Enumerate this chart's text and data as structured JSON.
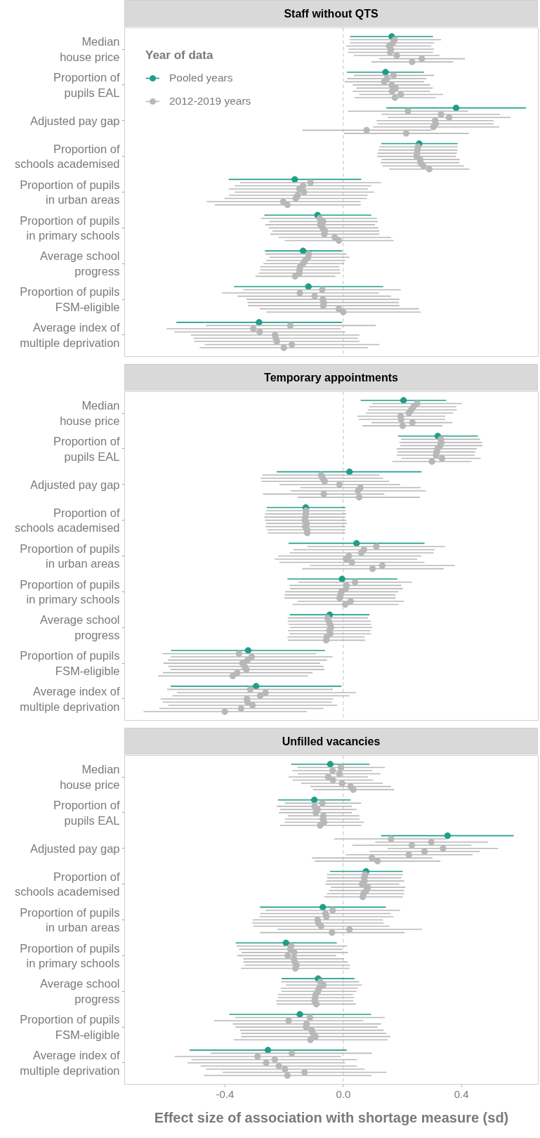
{
  "chart_data": [
    {
      "type": "scatter",
      "orientation": "horizontal",
      "title": "Staff without QTS",
      "categories": [
        "Median\nhouse price",
        "Proportion of\npupils EAL",
        "Adjusted pay gap",
        "Proportion of\nschools academised",
        "Proportion of pupils\nin urban areas",
        "Proportion of pupils\nin primary schools",
        "Average school\nprogress",
        "Proportion of pupils\nFSM-eligible",
        "Average index of\nmultiple deprivation"
      ],
      "xlim": [
        -0.74,
        0.66
      ],
      "tick_labels": "y",
      "legend": "top left",
      "legend_title": "Year of data",
      "marker": "circle",
      "ref_lines": [
        {
          "axis": "x",
          "value": 0,
          "color": "#cccccc",
          "line_style": "dashed"
        }
      ],
      "series": [
        {
          "name": "Pooled years",
          "color": "#1f9e89",
          "values": [
            0.164,
            0.143,
            0.382,
            0.257,
            -0.164,
            -0.087,
            -0.136,
            -0.118,
            -0.285
          ],
          "errors": [
            [
              0.023,
              0.304
            ],
            [
              0.012,
              0.273
            ],
            [
              0.146,
              0.619
            ],
            [
              0.128,
              0.387
            ],
            [
              -0.388,
              0.061
            ],
            [
              -0.267,
              0.095
            ],
            [
              -0.265,
              -0.004
            ],
            [
              -0.37,
              0.135
            ],
            [
              -0.565,
              -0.004
            ]
          ]
        },
        {
          "name": "2012-2019 years",
          "color": "#b8b8b8",
          "values": [
            0.174,
            0.17,
            0.219,
            0.253,
            -0.111,
            -0.08,
            -0.117,
            -0.071,
            -0.179
          ],
          "errors": [
            [
              0.021,
              0.331
            ],
            [
              0.036,
              0.307
            ],
            [
              0.016,
              0.423
            ],
            [
              0.122,
              0.387
            ],
            [
              -0.349,
              0.128
            ],
            [
              -0.279,
              0.114
            ],
            [
              -0.264,
              0.012
            ],
            [
              -0.339,
              0.195
            ],
            [
              -0.465,
              0.11
            ]
          ]
        },
        {
          "color": "#b8b8b8",
          "values": [
            0.168,
            0.148,
            0.331,
            0.251,
            -0.136,
            -0.068,
            -0.119,
            -0.147,
            -0.304
          ],
          "errors": [
            [
              0.023,
              0.307
            ],
            [
              0.014,
              0.282
            ],
            [
              0.13,
              0.53
            ],
            [
              0.119,
              0.387
            ],
            [
              -0.367,
              0.095
            ],
            [
              -0.25,
              0.117
            ],
            [
              -0.25,
              0.021
            ],
            [
              -0.411,
              0.121
            ],
            [
              -0.598,
              -0.008
            ]
          ]
        },
        {
          "color": "#b8b8b8",
          "values": [
            0.155,
            0.139,
            0.358,
            0.25,
            -0.149,
            -0.078,
            -0.129,
            -0.097,
            -0.283
          ],
          "errors": [
            [
              0.01,
              0.298
            ],
            [
              0.005,
              0.273
            ],
            [
              0.15,
              0.566
            ],
            [
              0.116,
              0.384
            ],
            [
              -0.388,
              0.083
            ],
            [
              -0.264,
              0.107
            ],
            [
              -0.261,
              0.007
            ],
            [
              -0.357,
              0.162
            ],
            [
              -0.572,
              0.007
            ]
          ]
        },
        {
          "color": "#b8b8b8",
          "values": [
            0.161,
            0.164,
            0.311,
            0.248,
            -0.133,
            -0.07,
            -0.136,
            -0.069,
            -0.231
          ],
          "errors": [
            [
              0.018,
              0.307
            ],
            [
              0.032,
              0.294
            ],
            [
              0.113,
              0.509
            ],
            [
              0.115,
              0.381
            ],
            [
              -0.367,
              0.104
            ],
            [
              -0.252,
              0.119
            ],
            [
              -0.27,
              0.003
            ],
            [
              -0.328,
              0.19
            ],
            [
              -0.516,
              0.055
            ]
          ]
        },
        {
          "color": "#b8b8b8",
          "values": [
            0.159,
            0.177,
            0.313,
            0.26,
            -0.154,
            -0.062,
            -0.146,
            -0.066,
            -0.228
          ],
          "errors": [
            [
              0.016,
              0.304
            ],
            [
              0.044,
              0.303
            ],
            [
              0.116,
              0.509
            ],
            [
              0.13,
              0.394
            ],
            [
              -0.386,
              0.083
            ],
            [
              -0.24,
              0.122
            ],
            [
              -0.281,
              -0.013
            ],
            [
              -0.324,
              0.188
            ],
            [
              -0.507,
              0.05
            ]
          ]
        },
        {
          "color": "#b8b8b8",
          "values": [
            0.181,
            0.165,
            0.305,
            0.262,
            -0.161,
            -0.064,
            -0.148,
            -0.068,
            -0.225
          ],
          "errors": [
            [
              0.036,
              0.326
            ],
            [
              0.032,
              0.294
            ],
            [
              0.101,
              0.528
            ],
            [
              0.127,
              0.393
            ],
            [
              -0.402,
              0.08
            ],
            [
              -0.247,
              0.122
            ],
            [
              -0.281,
              -0.011
            ],
            [
              -0.322,
              0.19
            ],
            [
              -0.505,
              0.055
            ]
          ]
        },
        {
          "color": "#b8b8b8",
          "values": [
            0.266,
            0.195,
            0.079,
            0.271,
            -0.203,
            -0.029,
            -0.149,
            -0.015,
            -0.174
          ],
          "errors": [
            [
              0.122,
              0.412
            ],
            [
              0.054,
              0.338
            ],
            [
              -0.138,
              0.298
            ],
            [
              0.133,
              0.409
            ],
            [
              -0.462,
              0.059
            ],
            [
              -0.219,
              0.162
            ],
            [
              -0.286,
              -0.009
            ],
            [
              -0.283,
              0.256
            ],
            [
              -0.469,
              0.122
            ]
          ]
        },
        {
          "color": "#b8b8b8",
          "values": [
            0.233,
            0.175,
            0.213,
            0.291,
            -0.189,
            -0.015,
            -0.163,
            0.0,
            -0.201
          ],
          "errors": [
            [
              0.095,
              0.372
            ],
            [
              0.038,
              0.313
            ],
            [
              0.003,
              0.425
            ],
            [
              0.155,
              0.427
            ],
            [
              -0.435,
              0.059
            ],
            [
              -0.198,
              0.17
            ],
            [
              -0.297,
              -0.027
            ],
            [
              -0.261,
              0.262
            ],
            [
              -0.486,
              0.083
            ]
          ]
        }
      ]
    },
    {
      "type": "scatter",
      "orientation": "horizontal",
      "title": "Temporary appointments",
      "categories": [
        "Median\nhouse price",
        "Proportion of\npupils EAL",
        "Adjusted pay gap",
        "Proportion of\nschools academised",
        "Proportion of pupils\nin urban areas",
        "Proportion of pupils\nin primary schools",
        "Average school\nprogress",
        "Proportion of pupils\nFSM-eligible",
        "Average index of\nmultiple deprivation"
      ],
      "xlim": [
        -0.74,
        0.66
      ],
      "tick_labels": "y",
      "marker": "circle",
      "ref_lines": [
        {
          "axis": "x",
          "value": 0,
          "color": "#cccccc",
          "line_style": "dashed"
        }
      ],
      "series": [
        {
          "color": "#1f9e89",
          "values": [
            0.204,
            0.32,
            0.021,
            -0.127,
            0.045,
            -0.004,
            -0.046,
            -0.322,
            -0.295
          ],
          "errors": [
            [
              0.059,
              0.349
            ],
            [
              0.186,
              0.456
            ],
            [
              -0.225,
              0.265
            ],
            [
              -0.259,
              0.007
            ],
            [
              -0.185,
              0.275
            ],
            [
              -0.189,
              0.183
            ],
            [
              -0.181,
              0.089
            ],
            [
              -0.583,
              -0.062
            ],
            [
              -0.584,
              -0.006
            ]
          ]
        },
        {
          "color": "#b8b8b8",
          "values": [
            0.25,
            0.33,
            -0.075,
            -0.126,
            0.112,
            0.04,
            -0.053,
            -0.353,
            -0.315
          ],
          "errors": [
            [
              0.098,
              0.402
            ],
            [
              0.195,
              0.463
            ],
            [
              -0.274,
              0.123
            ],
            [
              -0.261,
              0.007
            ],
            [
              -0.122,
              0.344
            ],
            [
              -0.152,
              0.232
            ],
            [
              -0.188,
              0.083
            ],
            [
              -0.612,
              -0.091
            ],
            [
              -0.596,
              -0.035
            ]
          ]
        },
        {
          "color": "#b8b8b8",
          "values": [
            0.238,
            0.332,
            -0.069,
            -0.127,
            0.07,
            0.011,
            -0.049,
            -0.31,
            -0.263
          ],
          "errors": [
            [
              0.088,
              0.382
            ],
            [
              0.19,
              0.47
            ],
            [
              -0.279,
              0.135
            ],
            [
              -0.265,
              0.01
            ],
            [
              -0.169,
              0.309
            ],
            [
              -0.182,
              0.197
            ],
            [
              -0.187,
              0.094
            ],
            [
              -0.584,
              -0.036
            ],
            [
              -0.563,
              0.043
            ]
          ]
        },
        {
          "color": "#b8b8b8",
          "values": [
            0.23,
            0.328,
            -0.063,
            -0.128,
            0.061,
            0.009,
            -0.045,
            -0.324,
            -0.281
          ],
          "errors": [
            [
              0.083,
              0.384
            ],
            [
              0.193,
              0.472
            ],
            [
              -0.277,
              0.155
            ],
            [
              -0.267,
              0.007
            ],
            [
              -0.181,
              0.306
            ],
            [
              -0.181,
              0.202
            ],
            [
              -0.185,
              0.094
            ],
            [
              -0.593,
              -0.055
            ],
            [
              -0.578,
              0.021
            ]
          ]
        },
        {
          "color": "#b8b8b8",
          "values": [
            0.222,
            0.319,
            -0.013,
            -0.13,
            0.019,
            -0.006,
            -0.042,
            -0.341,
            -0.326
          ],
          "errors": [
            [
              0.077,
              0.372
            ],
            [
              0.181,
              0.452
            ],
            [
              -0.216,
              0.193
            ],
            [
              -0.265,
              0.01
            ],
            [
              -0.221,
              0.264
            ],
            [
              -0.197,
              0.186
            ],
            [
              -0.181,
              0.098
            ],
            [
              -0.609,
              -0.078
            ],
            [
              -0.618,
              -0.033
            ]
          ]
        },
        {
          "color": "#b8b8b8",
          "values": [
            0.194,
            0.316,
            0.058,
            -0.124,
            0.01,
            -0.01,
            -0.047,
            -0.334,
            -0.324
          ],
          "errors": [
            [
              0.047,
              0.345
            ],
            [
              0.184,
              0.447
            ],
            [
              -0.145,
              0.262
            ],
            [
              -0.261,
              0.012
            ],
            [
              -0.232,
              0.25
            ],
            [
              -0.198,
              0.177
            ],
            [
              -0.187,
              0.092
            ],
            [
              -0.592,
              -0.067
            ],
            [
              -0.611,
              -0.039
            ]
          ]
        },
        {
          "color": "#b8b8b8",
          "values": [
            0.196,
            0.314,
            0.05,
            -0.129,
            0.029,
            -0.012,
            -0.044,
            -0.328,
            -0.307
          ],
          "errors": [
            [
              0.052,
              0.345
            ],
            [
              0.181,
              0.445
            ],
            [
              -0.178,
              0.28
            ],
            [
              -0.263,
              0.007
            ],
            [
              -0.216,
              0.275
            ],
            [
              -0.2,
              0.177
            ],
            [
              -0.182,
              0.094
            ],
            [
              -0.585,
              -0.064
            ],
            [
              -0.592,
              -0.021
            ]
          ]
        },
        {
          "color": "#b8b8b8",
          "values": [
            0.234,
            0.334,
            -0.066,
            -0.123,
            0.132,
            0.025,
            -0.056,
            -0.359,
            -0.346
          ],
          "errors": [
            [
              0.095,
              0.369
            ],
            [
              0.197,
              0.465
            ],
            [
              -0.272,
              0.139
            ],
            [
              -0.258,
              0.007
            ],
            [
              -0.113,
              0.378
            ],
            [
              -0.154,
              0.206
            ],
            [
              -0.189,
              0.072
            ],
            [
              -0.611,
              -0.104
            ],
            [
              -0.623,
              -0.067
            ]
          ]
        },
        {
          "color": "#b8b8b8",
          "values": [
            0.201,
            0.3,
            0.054,
            -0.122,
            0.099,
            0.007,
            -0.058,
            -0.374,
            -0.401
          ],
          "errors": [
            [
              0.065,
              0.336
            ],
            [
              0.166,
              0.434
            ],
            [
              -0.155,
              0.259
            ],
            [
              -0.255,
              0.007
            ],
            [
              -0.139,
              0.34
            ],
            [
              -0.172,
              0.188
            ],
            [
              -0.188,
              0.074
            ],
            [
              -0.627,
              -0.12
            ],
            [
              -0.676,
              -0.124
            ]
          ]
        }
      ]
    },
    {
      "type": "scatter",
      "orientation": "horizontal",
      "title": "Unfilled vacancies",
      "xlabel": "Effect size of association with shortage measure (sd)",
      "categories": [
        "Median\nhouse price",
        "Proportion of\npupils EAL",
        "Adjusted pay gap",
        "Proportion of\nschools academised",
        "Proportion of pupils\nin urban areas",
        "Proportion of pupils\nin primary schools",
        "Average school\nprogress",
        "Proportion of pupils\nFSM-eligible",
        "Average index of\nmultiple deprivation"
      ],
      "xlim": [
        -0.74,
        0.66
      ],
      "xticks": [
        -0.4,
        {
          "value": 0,
          "label": "0.0"
        },
        0.4
      ],
      "marker": "circle",
      "ref_lines": [
        {
          "axis": "x",
          "value": 0,
          "color": "#cccccc",
          "line_style": "dashed"
        }
      ],
      "series": [
        {
          "color": "#1f9e89",
          "values": [
            -0.044,
            -0.098,
            0.353,
            0.077,
            -0.069,
            -0.194,
            -0.085,
            -0.147,
            -0.255
          ],
          "errors": [
            [
              -0.176,
              0.089
            ],
            [
              -0.221,
              0.025
            ],
            [
              0.128,
              0.577
            ],
            [
              -0.045,
              0.201
            ],
            [
              -0.282,
              0.144
            ],
            [
              -0.364,
              -0.022
            ],
            [
              -0.209,
              0.038
            ],
            [
              -0.386,
              0.094
            ],
            [
              -0.52,
              0.012
            ]
          ]
        },
        {
          "color": "#b8b8b8",
          "values": [
            -0.008,
            -0.071,
            0.162,
            0.074,
            -0.036,
            -0.176,
            -0.078,
            -0.113,
            -0.174
          ],
          "errors": [
            [
              -0.155,
              0.141
            ],
            [
              -0.198,
              0.061
            ],
            [
              -0.031,
              0.351
            ],
            [
              -0.055,
              0.202
            ],
            [
              -0.263,
              0.192
            ],
            [
              -0.361,
              0.013
            ],
            [
              -0.21,
              0.054
            ],
            [
              -0.366,
              0.141
            ],
            [
              -0.449,
              0.098
            ]
          ]
        },
        {
          "color": "#b8b8b8",
          "values": [
            -0.036,
            -0.097,
            0.298,
            0.071,
            -0.06,
            -0.179,
            -0.067,
            -0.185,
            -0.29
          ],
          "errors": [
            [
              -0.172,
              0.099
            ],
            [
              -0.225,
              0.029
            ],
            [
              0.108,
              0.49
            ],
            [
              -0.055,
              0.197
            ],
            [
              -0.281,
              0.161
            ],
            [
              -0.353,
              -0.004
            ],
            [
              -0.194,
              0.063
            ],
            [
              -0.437,
              0.068
            ],
            [
              -0.571,
              -0.008
            ]
          ]
        },
        {
          "color": "#b8b8b8",
          "values": [
            -0.013,
            -0.087,
            0.232,
            0.072,
            -0.057,
            -0.166,
            -0.082,
            -0.124,
            -0.232
          ],
          "errors": [
            [
              -0.154,
              0.126
            ],
            [
              -0.214,
              0.045
            ],
            [
              0.031,
              0.434
            ],
            [
              -0.057,
              0.206
            ],
            [
              -0.283,
              0.17
            ],
            [
              -0.344,
              0.016
            ],
            [
              -0.212,
              0.049
            ],
            [
              -0.374,
              0.128
            ],
            [
              -0.514,
              0.047
            ]
          ]
        },
        {
          "color": "#b8b8b8",
          "values": [
            -0.051,
            -0.093,
            0.338,
            0.064,
            -0.087,
            -0.188,
            -0.086,
            -0.126,
            -0.261
          ],
          "errors": [
            [
              -0.185,
              0.083
            ],
            [
              -0.218,
              0.029
            ],
            [
              0.15,
              0.524
            ],
            [
              -0.06,
              0.19
            ],
            [
              -0.307,
              0.134
            ],
            [
              -0.359,
              -0.025
            ],
            [
              -0.21,
              0.045
            ],
            [
              -0.366,
              0.117
            ],
            [
              -0.527,
              0.007
            ]
          ]
        },
        {
          "color": "#b8b8b8",
          "values": [
            -0.035,
            -0.067,
            0.275,
            0.083,
            -0.084,
            -0.167,
            -0.093,
            -0.107,
            -0.218
          ],
          "errors": [
            [
              -0.172,
              0.101
            ],
            [
              -0.188,
              0.055
            ],
            [
              0.089,
              0.463
            ],
            [
              -0.042,
              0.21
            ],
            [
              -0.308,
              0.137
            ],
            [
              -0.339,
              0.003
            ],
            [
              -0.221,
              0.034
            ],
            [
              -0.349,
              0.137
            ],
            [
              -0.483,
              0.046
            ]
          ]
        },
        {
          "color": "#b8b8b8",
          "values": [
            -0.004,
            -0.069,
            0.222,
            0.078,
            -0.075,
            -0.164,
            -0.095,
            -0.102,
            -0.197
          ],
          "errors": [
            [
              -0.143,
              0.134
            ],
            [
              -0.197,
              0.055
            ],
            [
              0.009,
              0.438
            ],
            [
              -0.048,
              0.206
            ],
            [
              -0.304,
              0.156
            ],
            [
              -0.338,
              0.016
            ],
            [
              -0.221,
              0.037
            ],
            [
              -0.346,
              0.146
            ],
            [
              -0.465,
              0.072
            ]
          ]
        },
        {
          "color": "#b8b8b8",
          "values": [
            0.025,
            -0.065,
            0.097,
            0.069,
            0.021,
            -0.158,
            -0.097,
            -0.094,
            -0.131
          ],
          "errors": [
            [
              -0.111,
              0.162
            ],
            [
              -0.198,
              0.07
            ],
            [
              -0.106,
              0.302
            ],
            [
              -0.055,
              0.206
            ],
            [
              -0.223,
              0.266
            ],
            [
              -0.334,
              0.023
            ],
            [
              -0.227,
              0.034
            ],
            [
              -0.346,
              0.159
            ],
            [
              -0.408,
              0.146
            ]
          ]
        },
        {
          "color": "#b8b8b8",
          "values": [
            0.034,
            -0.078,
            0.116,
            0.066,
            -0.038,
            -0.162,
            -0.091,
            -0.111,
            -0.189
          ],
          "errors": [
            [
              -0.103,
              0.172
            ],
            [
              -0.214,
              0.061
            ],
            [
              -0.096,
              0.329
            ],
            [
              -0.064,
              0.202
            ],
            [
              -0.282,
              0.208
            ],
            [
              -0.346,
              0.022
            ],
            [
              -0.225,
              0.043
            ],
            [
              -0.37,
              0.15
            ],
            [
              -0.471,
              0.095
            ]
          ]
        }
      ]
    }
  ]
}
